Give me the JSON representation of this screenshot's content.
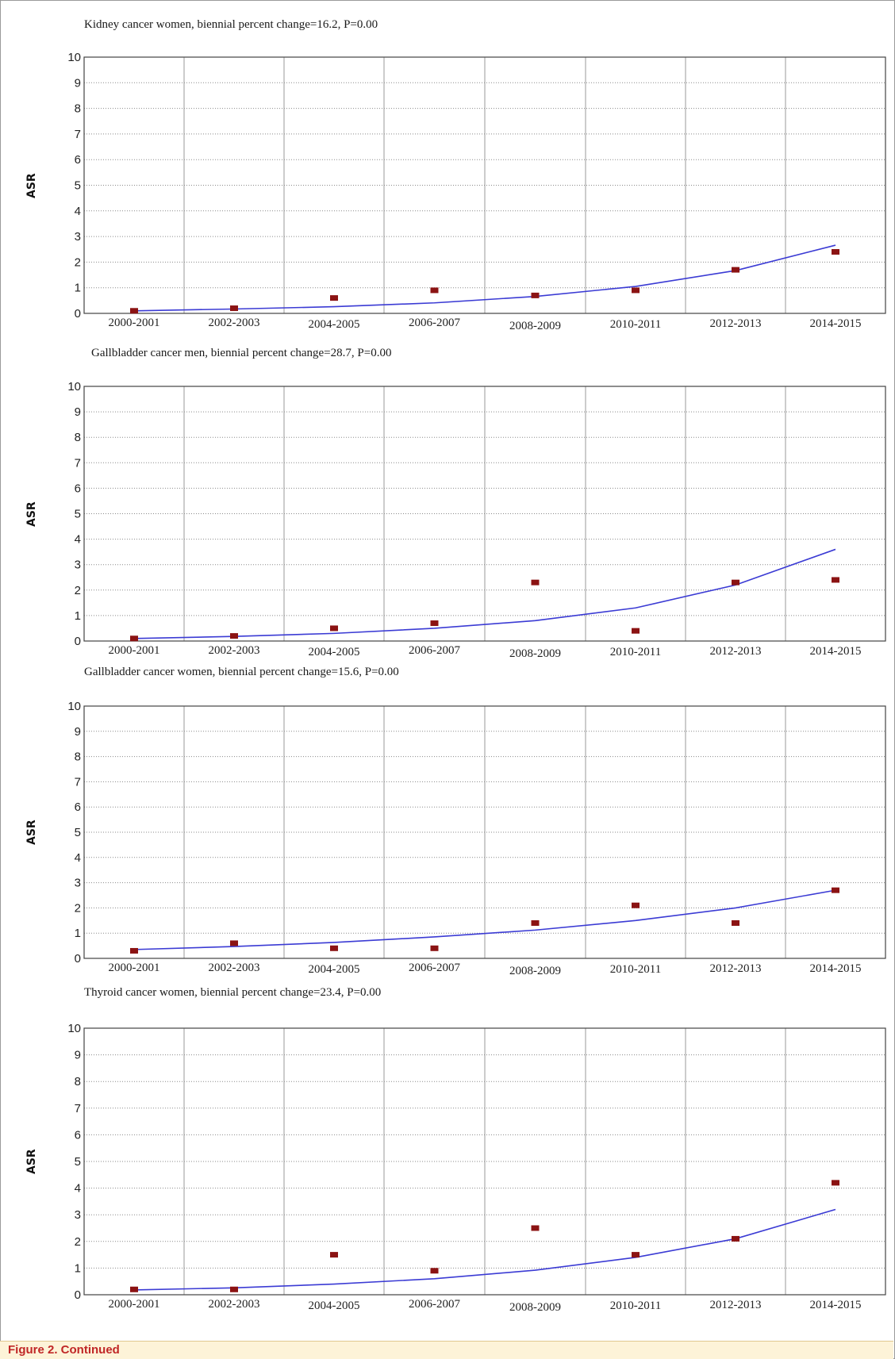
{
  "figure_caption": "Figure 2.  Continued",
  "chart_data": [
    {
      "type": "scatter",
      "title": "Kidney cancer women, biennial percent change=16.2, P=0.00",
      "ylabel": "ASR",
      "xlabel": "",
      "ylim": [
        0,
        10
      ],
      "yticks": [
        "0",
        "1",
        "2",
        "3",
        "4",
        "5",
        "6",
        "7",
        "8",
        "9",
        "10"
      ],
      "categories": [
        "2000-2001",
        "2002-2003",
        "2004-2005",
        "2006-2007",
        "2008-2009",
        "2010-2011",
        "2012-2013",
        "2014-2015"
      ],
      "series": [
        {
          "kind": "observed",
          "values": [
            0.1,
            0.2,
            0.6,
            0.9,
            0.7,
            0.9,
            1.7,
            2.4
          ]
        },
        {
          "kind": "fitted",
          "values": [
            0.1,
            0.17,
            0.26,
            0.41,
            0.66,
            1.05,
            1.67,
            2.66
          ]
        }
      ],
      "grid": true
    },
    {
      "type": "scatter",
      "title": "Gallbladder cancer men, biennial percent change=28.7, P=0.00",
      "ylabel": "ASR",
      "xlabel": "",
      "ylim": [
        0,
        10
      ],
      "yticks": [
        "0",
        "1",
        "2",
        "3",
        "4",
        "5",
        "6",
        "7",
        "8",
        "9",
        "10"
      ],
      "categories": [
        "2000-2001",
        "2002-2003",
        "2004-2005",
        "2006-2007",
        "2008-2009",
        "2010-2011",
        "2012-2013",
        "2014-2015"
      ],
      "series": [
        {
          "kind": "observed",
          "values": [
            0.1,
            0.2,
            0.5,
            0.7,
            2.3,
            0.4,
            2.3,
            2.4
          ]
        },
        {
          "kind": "fitted",
          "values": [
            0.1,
            0.18,
            0.3,
            0.5,
            0.8,
            1.3,
            2.2,
            3.6
          ]
        }
      ],
      "grid": true
    },
    {
      "type": "scatter",
      "title": "Gallbladder cancer women, biennial percent change=15.6, P=0.00",
      "ylabel": "ASR",
      "xlabel": "",
      "ylim": [
        0,
        10
      ],
      "yticks": [
        "0",
        "1",
        "2",
        "3",
        "4",
        "5",
        "6",
        "7",
        "8",
        "9",
        "10"
      ],
      "categories": [
        "2000-2001",
        "2002-2003",
        "2004-2005",
        "2006-2007",
        "2008-2009",
        "2010-2011",
        "2012-2013",
        "2014-2015"
      ],
      "series": [
        {
          "kind": "observed",
          "values": [
            0.3,
            0.6,
            0.4,
            0.4,
            1.4,
            2.1,
            1.4,
            2.7
          ]
        },
        {
          "kind": "fitted",
          "values": [
            0.35,
            0.47,
            0.63,
            0.85,
            1.12,
            1.5,
            2.0,
            2.7
          ]
        }
      ],
      "grid": true
    },
    {
      "type": "scatter",
      "title": "Thyroid cancer women, biennial percent change=23.4, P=0.00",
      "ylabel": "ASR",
      "xlabel": "",
      "ylim": [
        0,
        10
      ],
      "yticks": [
        "0",
        "1",
        "2",
        "3",
        "4",
        "5",
        "6",
        "7",
        "8",
        "9",
        "10"
      ],
      "categories": [
        "2000-2001",
        "2002-2003",
        "2004-2005",
        "2006-2007",
        "2008-2009",
        "2010-2011",
        "2012-2013",
        "2014-2015"
      ],
      "series": [
        {
          "kind": "observed",
          "values": [
            0.2,
            0.2,
            1.5,
            0.9,
            2.5,
            1.5,
            2.1,
            4.2
          ]
        },
        {
          "kind": "fitted",
          "values": [
            0.18,
            0.26,
            0.4,
            0.6,
            0.92,
            1.4,
            2.1,
            3.2
          ]
        }
      ],
      "grid": true
    }
  ]
}
